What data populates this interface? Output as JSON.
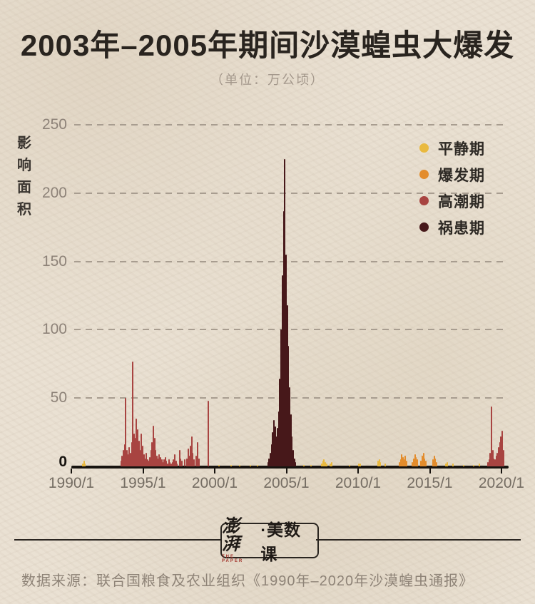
{
  "title": "2003年–2005年期间沙漠蝗虫大爆发",
  "subtitle": "（单位：万公顷）",
  "y_axis_title": "影响面积",
  "legend": [
    {
      "key": "calm",
      "label": "平静期",
      "color": "#e9b93e"
    },
    {
      "key": "outbreak",
      "label": "爆发期",
      "color": "#e38c2c"
    },
    {
      "key": "upsurge",
      "label": "高潮期",
      "color": "#a84441"
    },
    {
      "key": "plague",
      "label": "祸患期",
      "color": "#47181a"
    }
  ],
  "footer": {
    "logo_main": "澎湃",
    "logo_en": "THE PAPER",
    "logo_suffix": "·美数课",
    "source": "数据来源：联合国粮食及农业组织《1990年–2020年沙漠蝗虫通报》"
  },
  "chart_data": {
    "type": "bar",
    "title": "2003年–2005年期间沙漠蝗虫大爆发",
    "unit": "万公顷",
    "ylabel": "影响面积",
    "ylim": [
      0,
      250
    ],
    "y_ticks": [
      0,
      50,
      100,
      150,
      200,
      250
    ],
    "x_ticks": [
      "1990/1",
      "1995/1",
      "2000/1",
      "2005/1",
      "2010/1",
      "2015/1",
      "2020/1"
    ],
    "x_range": [
      "1990/1",
      "2020/8"
    ],
    "grid": "dashed-horizontal",
    "legend_position": "top-right",
    "bars": [
      {
        "x": "1990/10",
        "v": 2,
        "p": "calm"
      },
      {
        "x": "1990/11",
        "v": 4,
        "p": "calm"
      },
      {
        "x": "1990/12",
        "v": 2,
        "p": "calm"
      },
      {
        "x": "1993/6",
        "v": 4,
        "p": "upsurge"
      },
      {
        "x": "1993/7",
        "v": 8,
        "p": "upsurge"
      },
      {
        "x": "1993/8",
        "v": 12,
        "p": "upsurge"
      },
      {
        "x": "1993/9",
        "v": 16,
        "p": "upsurge"
      },
      {
        "x": "1993/10",
        "v": 50,
        "p": "upsurge"
      },
      {
        "x": "1993/11",
        "v": 12,
        "p": "upsurge"
      },
      {
        "x": "1993/12",
        "v": 9,
        "p": "upsurge"
      },
      {
        "x": "1994/1",
        "v": 14,
        "p": "upsurge"
      },
      {
        "x": "1994/2",
        "v": 10,
        "p": "upsurge"
      },
      {
        "x": "1994/3",
        "v": 18,
        "p": "upsurge"
      },
      {
        "x": "1994/4",
        "v": 77,
        "p": "upsurge"
      },
      {
        "x": "1994/5",
        "v": 24,
        "p": "upsurge"
      },
      {
        "x": "1994/6",
        "v": 21,
        "p": "upsurge"
      },
      {
        "x": "1994/7",
        "v": 35,
        "p": "upsurge"
      },
      {
        "x": "1994/8",
        "v": 27,
        "p": "upsurge"
      },
      {
        "x": "1994/9",
        "v": 19,
        "p": "upsurge"
      },
      {
        "x": "1994/10",
        "v": 12,
        "p": "upsurge"
      },
      {
        "x": "1994/11",
        "v": 24,
        "p": "upsurge"
      },
      {
        "x": "1994/12",
        "v": 15,
        "p": "upsurge"
      },
      {
        "x": "1995/1",
        "v": 9,
        "p": "upsurge"
      },
      {
        "x": "1995/2",
        "v": 6,
        "p": "upsurge"
      },
      {
        "x": "1995/3",
        "v": 10,
        "p": "upsurge"
      },
      {
        "x": "1995/4",
        "v": 5,
        "p": "upsurge"
      },
      {
        "x": "1995/5",
        "v": 4,
        "p": "upsurge"
      },
      {
        "x": "1995/6",
        "v": 7,
        "p": "upsurge"
      },
      {
        "x": "1995/7",
        "v": 12,
        "p": "upsurge"
      },
      {
        "x": "1995/8",
        "v": 18,
        "p": "upsurge"
      },
      {
        "x": "1995/9",
        "v": 30,
        "p": "upsurge"
      },
      {
        "x": "1995/10",
        "v": 21,
        "p": "upsurge"
      },
      {
        "x": "1995/11",
        "v": 12,
        "p": "upsurge"
      },
      {
        "x": "1995/12",
        "v": 8,
        "p": "upsurge"
      },
      {
        "x": "1996/1",
        "v": 6,
        "p": "upsurge"
      },
      {
        "x": "1996/2",
        "v": 9,
        "p": "upsurge"
      },
      {
        "x": "1996/3",
        "v": 7,
        "p": "upsurge"
      },
      {
        "x": "1996/4",
        "v": 5,
        "p": "upsurge"
      },
      {
        "x": "1996/5",
        "v": 3,
        "p": "upsurge"
      },
      {
        "x": "1996/6",
        "v": 5,
        "p": "upsurge"
      },
      {
        "x": "1996/7",
        "v": 7,
        "p": "upsurge"
      },
      {
        "x": "1996/8",
        "v": 4,
        "p": "upsurge"
      },
      {
        "x": "1996/9",
        "v": 2,
        "p": "upsurge"
      },
      {
        "x": "1996/10",
        "v": 5,
        "p": "upsurge"
      },
      {
        "x": "1996/11",
        "v": 3,
        "p": "upsurge"
      },
      {
        "x": "1996/12",
        "v": 2,
        "p": "upsurge"
      },
      {
        "x": "1997/1",
        "v": 3,
        "p": "upsurge"
      },
      {
        "x": "1997/2",
        "v": 5,
        "p": "upsurge"
      },
      {
        "x": "1997/3",
        "v": 9,
        "p": "upsurge"
      },
      {
        "x": "1997/4",
        "v": 4,
        "p": "upsurge"
      },
      {
        "x": "1997/5",
        "v": 2,
        "p": "upsurge"
      },
      {
        "x": "1997/7",
        "v": 12,
        "p": "upsurge"
      },
      {
        "x": "1997/8",
        "v": 6,
        "p": "upsurge"
      },
      {
        "x": "1997/9",
        "v": 4,
        "p": "upsurge"
      },
      {
        "x": "1997/11",
        "v": 5,
        "p": "upsurge"
      },
      {
        "x": "1998/1",
        "v": 6,
        "p": "upsurge"
      },
      {
        "x": "1998/2",
        "v": 13,
        "p": "upsurge"
      },
      {
        "x": "1998/3",
        "v": 8,
        "p": "upsurge"
      },
      {
        "x": "1998/4",
        "v": 15,
        "p": "upsurge"
      },
      {
        "x": "1998/5",
        "v": 22,
        "p": "upsurge"
      },
      {
        "x": "1998/6",
        "v": 10,
        "p": "upsurge"
      },
      {
        "x": "1998/7",
        "v": 5,
        "p": "upsurge"
      },
      {
        "x": "1998/9",
        "v": 8,
        "p": "upsurge"
      },
      {
        "x": "1998/10",
        "v": 18,
        "p": "upsurge"
      },
      {
        "x": "1998/11",
        "v": 6,
        "p": "upsurge"
      },
      {
        "x": "1999/7",
        "v": 48,
        "p": "upsurge"
      },
      {
        "x": "2000/4",
        "v": 1,
        "p": "calm"
      },
      {
        "x": "2001/2",
        "v": 1,
        "p": "calm"
      },
      {
        "x": "2001/9",
        "v": 1,
        "p": "calm"
      },
      {
        "x": "2002/6",
        "v": 1,
        "p": "calm"
      },
      {
        "x": "2002/12",
        "v": 1,
        "p": "calm"
      },
      {
        "x": "2003/9",
        "v": 3,
        "p": "plague"
      },
      {
        "x": "2003/10",
        "v": 6,
        "p": "plague"
      },
      {
        "x": "2003/11",
        "v": 10,
        "p": "plague"
      },
      {
        "x": "2003/12",
        "v": 16,
        "p": "plague"
      },
      {
        "x": "2004/1",
        "v": 25,
        "p": "plague"
      },
      {
        "x": "2004/2",
        "v": 34,
        "p": "plague"
      },
      {
        "x": "2004/3",
        "v": 29,
        "p": "plague"
      },
      {
        "x": "2004/4",
        "v": 22,
        "p": "plague"
      },
      {
        "x": "2004/5",
        "v": 28,
        "p": "plague"
      },
      {
        "x": "2004/6",
        "v": 40,
        "p": "plague"
      },
      {
        "x": "2004/7",
        "v": 64,
        "p": "plague"
      },
      {
        "x": "2004/8",
        "v": 100,
        "p": "plague"
      },
      {
        "x": "2004/9",
        "v": 140,
        "p": "plague"
      },
      {
        "x": "2004/10",
        "v": 187,
        "p": "plague"
      },
      {
        "x": "2004/11",
        "v": 225,
        "p": "plague"
      },
      {
        "x": "2004/12",
        "v": 155,
        "p": "plague"
      },
      {
        "x": "2005/1",
        "v": 118,
        "p": "plague"
      },
      {
        "x": "2005/2",
        "v": 88,
        "p": "plague"
      },
      {
        "x": "2005/3",
        "v": 58,
        "p": "plague"
      },
      {
        "x": "2005/4",
        "v": 38,
        "p": "plague"
      },
      {
        "x": "2005/5",
        "v": 22,
        "p": "plague"
      },
      {
        "x": "2005/6",
        "v": 12,
        "p": "plague"
      },
      {
        "x": "2005/7",
        "v": 6,
        "p": "plague"
      },
      {
        "x": "2005/8",
        "v": 3,
        "p": "plague"
      },
      {
        "x": "2006/3",
        "v": 1,
        "p": "calm"
      },
      {
        "x": "2006/9",
        "v": 1,
        "p": "calm"
      },
      {
        "x": "2007/6",
        "v": 2,
        "p": "calm"
      },
      {
        "x": "2007/7",
        "v": 4,
        "p": "calm"
      },
      {
        "x": "2007/8",
        "v": 5,
        "p": "calm"
      },
      {
        "x": "2007/9",
        "v": 3,
        "p": "calm"
      },
      {
        "x": "2007/10",
        "v": 2,
        "p": "calm"
      },
      {
        "x": "2008/1",
        "v": 2,
        "p": "calm"
      },
      {
        "x": "2008/2",
        "v": 3,
        "p": "calm"
      },
      {
        "x": "2009/5",
        "v": 1,
        "p": "calm"
      },
      {
        "x": "2010/1",
        "v": 2,
        "p": "calm"
      },
      {
        "x": "2010/2",
        "v": 2,
        "p": "calm"
      },
      {
        "x": "2011/5",
        "v": 4,
        "p": "calm"
      },
      {
        "x": "2011/6",
        "v": 5,
        "p": "calm"
      },
      {
        "x": "2011/7",
        "v": 3,
        "p": "calm"
      },
      {
        "x": "2011/11",
        "v": 2,
        "p": "calm"
      },
      {
        "x": "2012/11",
        "v": 3,
        "p": "outbreak"
      },
      {
        "x": "2012/12",
        "v": 5,
        "p": "outbreak"
      },
      {
        "x": "2013/1",
        "v": 9,
        "p": "outbreak"
      },
      {
        "x": "2013/2",
        "v": 7,
        "p": "outbreak"
      },
      {
        "x": "2013/3",
        "v": 5,
        "p": "outbreak"
      },
      {
        "x": "2013/4",
        "v": 8,
        "p": "outbreak"
      },
      {
        "x": "2013/5",
        "v": 4,
        "p": "outbreak"
      },
      {
        "x": "2013/10",
        "v": 3,
        "p": "outbreak"
      },
      {
        "x": "2013/11",
        "v": 6,
        "p": "outbreak"
      },
      {
        "x": "2013/12",
        "v": 9,
        "p": "outbreak"
      },
      {
        "x": "2014/1",
        "v": 7,
        "p": "outbreak"
      },
      {
        "x": "2014/2",
        "v": 5,
        "p": "outbreak"
      },
      {
        "x": "2014/5",
        "v": 4,
        "p": "outbreak"
      },
      {
        "x": "2014/6",
        "v": 8,
        "p": "outbreak"
      },
      {
        "x": "2014/7",
        "v": 10,
        "p": "outbreak"
      },
      {
        "x": "2014/8",
        "v": 6,
        "p": "outbreak"
      },
      {
        "x": "2014/9",
        "v": 4,
        "p": "outbreak"
      },
      {
        "x": "2015/3",
        "v": 5,
        "p": "outbreak"
      },
      {
        "x": "2015/4",
        "v": 8,
        "p": "outbreak"
      },
      {
        "x": "2015/5",
        "v": 6,
        "p": "outbreak"
      },
      {
        "x": "2015/6",
        "v": 3,
        "p": "outbreak"
      },
      {
        "x": "2016/2",
        "v": 2,
        "p": "calm"
      },
      {
        "x": "2016/3",
        "v": 3,
        "p": "calm"
      },
      {
        "x": "2016/8",
        "v": 2,
        "p": "calm"
      },
      {
        "x": "2017/5",
        "v": 1,
        "p": "calm"
      },
      {
        "x": "2018/1",
        "v": 1,
        "p": "calm"
      },
      {
        "x": "2018/6",
        "v": 2,
        "p": "calm"
      },
      {
        "x": "2019/1",
        "v": 3,
        "p": "upsurge"
      },
      {
        "x": "2019/2",
        "v": 5,
        "p": "upsurge"
      },
      {
        "x": "2019/3",
        "v": 10,
        "p": "upsurge"
      },
      {
        "x": "2019/4",
        "v": 44,
        "p": "upsurge"
      },
      {
        "x": "2019/5",
        "v": 12,
        "p": "upsurge"
      },
      {
        "x": "2019/6",
        "v": 6,
        "p": "upsurge"
      },
      {
        "x": "2019/7",
        "v": 5,
        "p": "upsurge"
      },
      {
        "x": "2019/8",
        "v": 8,
        "p": "upsurge"
      },
      {
        "x": "2019/9",
        "v": 10,
        "p": "upsurge"
      },
      {
        "x": "2019/10",
        "v": 14,
        "p": "upsurge"
      },
      {
        "x": "2019/11",
        "v": 18,
        "p": "upsurge"
      },
      {
        "x": "2019/12",
        "v": 22,
        "p": "upsurge"
      },
      {
        "x": "2020/1",
        "v": 26,
        "p": "upsurge"
      },
      {
        "x": "2020/2",
        "v": 12,
        "p": "upsurge"
      }
    ]
  }
}
